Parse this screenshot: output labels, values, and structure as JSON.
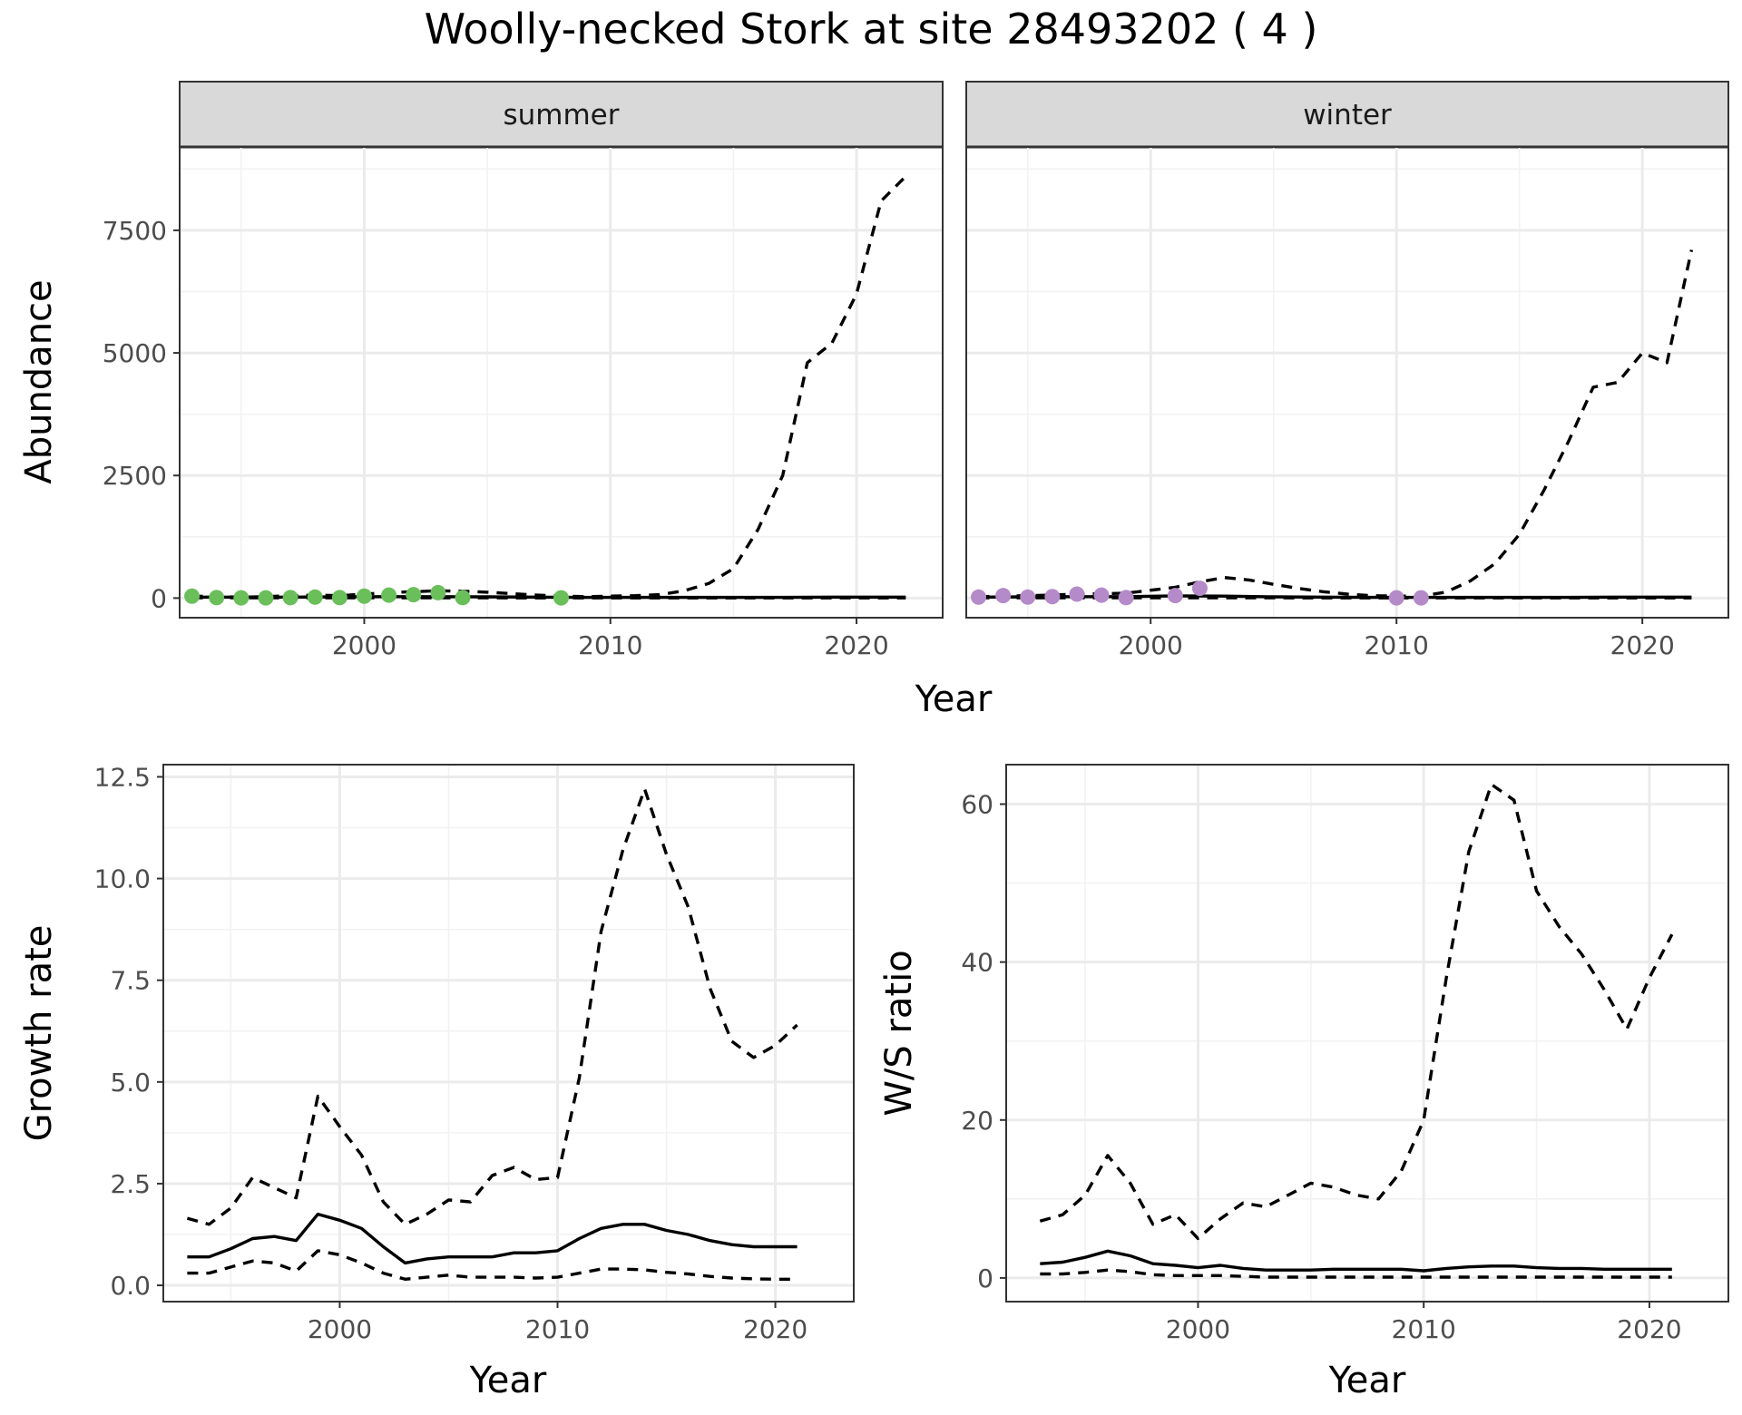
{
  "title": "Woolly-necked Stork at site 28493202 ( 4 )",
  "colors": {
    "summer_points": "#6abf5b",
    "winter_points": "#b58ac9",
    "lines": "#000000"
  },
  "chart_data": [
    {
      "type": "line",
      "facets": [
        "summer",
        "winter"
      ],
      "xlabel": "Year",
      "ylabel": "Abundance",
      "xlim": [
        1992.5,
        2023.5
      ],
      "ylim": [
        -400,
        9200
      ],
      "x_ticks": [
        2000,
        2010,
        2020
      ],
      "y_ticks": [
        0,
        2500,
        5000,
        7500
      ],
      "grid": true,
      "panels": [
        {
          "name": "summer",
          "point_color": "#6abf5b",
          "observed": {
            "x": [
              1993,
              1994,
              1995,
              1996,
              1997,
              1998,
              1999,
              2000,
              2001,
              2002,
              2003,
              2004,
              2008
            ],
            "y": [
              40,
              10,
              5,
              5,
              10,
              20,
              10,
              40,
              60,
              70,
              110,
              10,
              5
            ]
          },
          "estimate": {
            "x": [
              1993,
              1995,
              1997,
              1999,
              2001,
              2003,
              2005,
              2007,
              2009,
              2011,
              2013,
              2015,
              2017,
              2019,
              2021,
              2022
            ],
            "y": [
              20,
              20,
              20,
              25,
              30,
              30,
              25,
              20,
              15,
              15,
              15,
              15,
              15,
              20,
              20,
              20
            ]
          },
          "upper": {
            "x": [
              1993,
              1994,
              1995,
              1996,
              1997,
              1998,
              1999,
              2000,
              2001,
              2002,
              2003,
              2004,
              2005,
              2006,
              2007,
              2008,
              2009,
              2010,
              2011,
              2012,
              2013,
              2014,
              2015,
              2016,
              2017,
              2018,
              2019,
              2020,
              2021,
              2022
            ],
            "y": [
              40,
              30,
              20,
              30,
              50,
              60,
              50,
              80,
              110,
              130,
              150,
              140,
              120,
              90,
              60,
              40,
              30,
              40,
              50,
              70,
              150,
              300,
              600,
              1400,
              2500,
              4800,
              5200,
              6200,
              8100,
              8600
            ]
          },
          "lower": {
            "x": [
              1993,
              1997,
              2001,
              2005,
              2009,
              2013,
              2017,
              2022
            ],
            "y": [
              5,
              5,
              5,
              5,
              3,
              3,
              3,
              3
            ]
          }
        },
        {
          "name": "winter",
          "point_color": "#b58ac9",
          "observed": {
            "x": [
              1993,
              1994,
              1995,
              1996,
              1997,
              1998,
              1999,
              2001,
              2002,
              2010,
              2011
            ],
            "y": [
              20,
              50,
              20,
              30,
              80,
              60,
              10,
              50,
              200,
              5,
              5
            ]
          },
          "estimate": {
            "x": [
              1993,
              1995,
              1997,
              1999,
              2001,
              2003,
              2005,
              2007,
              2009,
              2011,
              2013,
              2015,
              2017,
              2019,
              2021,
              2022
            ],
            "y": [
              20,
              25,
              30,
              30,
              45,
              40,
              25,
              20,
              15,
              15,
              15,
              15,
              15,
              20,
              20,
              20
            ]
          },
          "upper": {
            "x": [
              1993,
              1994,
              1995,
              1996,
              1997,
              1998,
              1999,
              2000,
              2001,
              2002,
              2003,
              2004,
              2005,
              2006,
              2007,
              2008,
              2009,
              2010,
              2011,
              2012,
              2013,
              2014,
              2015,
              2016,
              2017,
              2018,
              2019,
              2020,
              2021,
              2022
            ],
            "y": [
              30,
              40,
              50,
              60,
              80,
              90,
              100,
              160,
              220,
              330,
              420,
              370,
              280,
              200,
              130,
              80,
              50,
              40,
              40,
              120,
              350,
              700,
              1300,
              2200,
              3200,
              4300,
              4400,
              5000,
              4800,
              7100
            ]
          },
          "lower": {
            "x": [
              1993,
              1997,
              2001,
              2005,
              2009,
              2013,
              2017,
              2022
            ],
            "y": [
              5,
              5,
              5,
              5,
              3,
              3,
              3,
              3
            ]
          }
        }
      ]
    },
    {
      "type": "line",
      "xlabel": "Year",
      "ylabel": "Growth rate",
      "xlim": [
        1991.9,
        2023.6
      ],
      "ylim": [
        -0.4,
        12.8
      ],
      "x_ticks": [
        2000,
        2010,
        2020
      ],
      "y_ticks": [
        0.0,
        2.5,
        5.0,
        7.5,
        10.0,
        12.5
      ],
      "y_tick_labels": [
        "0.0",
        "2.5",
        "5.0",
        "7.5",
        "10.0",
        "12.5"
      ],
      "grid": true,
      "series": [
        {
          "role": "estimate",
          "x": [
            1993,
            1994,
            1995,
            1996,
            1997,
            1998,
            1999,
            2000,
            2001,
            2002,
            2003,
            2004,
            2005,
            2006,
            2007,
            2008,
            2009,
            2010,
            2011,
            2012,
            2013,
            2014,
            2015,
            2016,
            2017,
            2018,
            2019,
            2020,
            2021
          ],
          "y": [
            0.7,
            0.7,
            0.9,
            1.15,
            1.2,
            1.1,
            1.75,
            1.6,
            1.4,
            0.95,
            0.55,
            0.65,
            0.7,
            0.7,
            0.7,
            0.8,
            0.8,
            0.85,
            1.15,
            1.4,
            1.5,
            1.5,
            1.35,
            1.25,
            1.1,
            1.0,
            0.95,
            0.95,
            0.95
          ]
        },
        {
          "role": "upper",
          "x": [
            1993,
            1994,
            1995,
            1996,
            1997,
            1998,
            1999,
            2000,
            2001,
            2002,
            2003,
            2004,
            2005,
            2006,
            2007,
            2008,
            2009,
            2010,
            2011,
            2012,
            2013,
            2014,
            2015,
            2016,
            2017,
            2018,
            2019,
            2020,
            2021
          ],
          "y": [
            1.65,
            1.5,
            1.9,
            2.65,
            2.4,
            2.15,
            4.65,
            3.9,
            3.2,
            2.05,
            1.5,
            1.75,
            2.1,
            2.05,
            2.7,
            2.9,
            2.6,
            2.65,
            5.1,
            8.7,
            10.7,
            12.2,
            10.6,
            9.3,
            7.3,
            6.0,
            5.6,
            5.9,
            6.4
          ]
        },
        {
          "role": "lower",
          "x": [
            1993,
            1994,
            1995,
            1996,
            1997,
            1998,
            1999,
            2000,
            2001,
            2002,
            2003,
            2004,
            2005,
            2006,
            2007,
            2008,
            2009,
            2010,
            2011,
            2012,
            2013,
            2014,
            2015,
            2016,
            2017,
            2018,
            2019,
            2020,
            2021
          ],
          "y": [
            0.3,
            0.3,
            0.45,
            0.6,
            0.55,
            0.35,
            0.85,
            0.75,
            0.55,
            0.3,
            0.15,
            0.2,
            0.25,
            0.2,
            0.2,
            0.2,
            0.18,
            0.2,
            0.3,
            0.4,
            0.4,
            0.38,
            0.32,
            0.28,
            0.22,
            0.18,
            0.16,
            0.15,
            0.15
          ]
        }
      ]
    },
    {
      "type": "line",
      "xlabel": "Year",
      "ylabel": "W/S ratio",
      "xlim": [
        1991.5,
        2023.5
      ],
      "ylim": [
        -3,
        65
      ],
      "x_ticks": [
        2000,
        2010,
        2020
      ],
      "y_ticks": [
        0,
        20,
        40,
        60
      ],
      "grid": true,
      "series": [
        {
          "role": "estimate",
          "x": [
            1993,
            1994,
            1995,
            1996,
            1997,
            1998,
            1999,
            2000,
            2001,
            2002,
            2003,
            2004,
            2005,
            2006,
            2007,
            2008,
            2009,
            2010,
            2011,
            2012,
            2013,
            2014,
            2015,
            2016,
            2017,
            2018,
            2019,
            2020,
            2021
          ],
          "y": [
            1.8,
            2.0,
            2.6,
            3.4,
            2.8,
            1.8,
            1.6,
            1.3,
            1.6,
            1.2,
            1.0,
            1.0,
            1.0,
            1.1,
            1.1,
            1.1,
            1.1,
            0.9,
            1.2,
            1.4,
            1.5,
            1.5,
            1.3,
            1.2,
            1.2,
            1.1,
            1.1,
            1.1,
            1.1
          ]
        },
        {
          "role": "upper",
          "x": [
            1993,
            1994,
            1995,
            1996,
            1997,
            1998,
            1999,
            2000,
            2001,
            2002,
            2003,
            2004,
            2005,
            2006,
            2007,
            2008,
            2009,
            2010,
            2011,
            2012,
            2013,
            2014,
            2015,
            2016,
            2017,
            2018,
            2019,
            2020,
            2021
          ],
          "y": [
            7.2,
            8.0,
            10.5,
            15.5,
            12.0,
            6.8,
            8.0,
            5.0,
            7.5,
            9.5,
            9.0,
            10.5,
            12.0,
            11.5,
            10.5,
            10.0,
            13.5,
            20.0,
            38.0,
            54.0,
            62.5,
            60.5,
            49.0,
            44.5,
            41.0,
            36.5,
            31.5,
            38.0,
            43.5
          ]
        },
        {
          "role": "lower",
          "x": [
            1993,
            1994,
            1995,
            1996,
            1997,
            1998,
            1999,
            2000,
            2001,
            2002,
            2003,
            2004,
            2005,
            2006,
            2007,
            2008,
            2009,
            2010,
            2011,
            2012,
            2013,
            2014,
            2015,
            2016,
            2017,
            2018,
            2019,
            2020,
            2021
          ],
          "y": [
            0.5,
            0.5,
            0.7,
            1.0,
            0.8,
            0.4,
            0.3,
            0.3,
            0.3,
            0.2,
            0.1,
            0.1,
            0.1,
            0.1,
            0.1,
            0.1,
            0.1,
            0.1,
            0.1,
            0.1,
            0.1,
            0.1,
            0.1,
            0.1,
            0.1,
            0.1,
            0.1,
            0.1,
            0.1
          ]
        }
      ]
    }
  ]
}
